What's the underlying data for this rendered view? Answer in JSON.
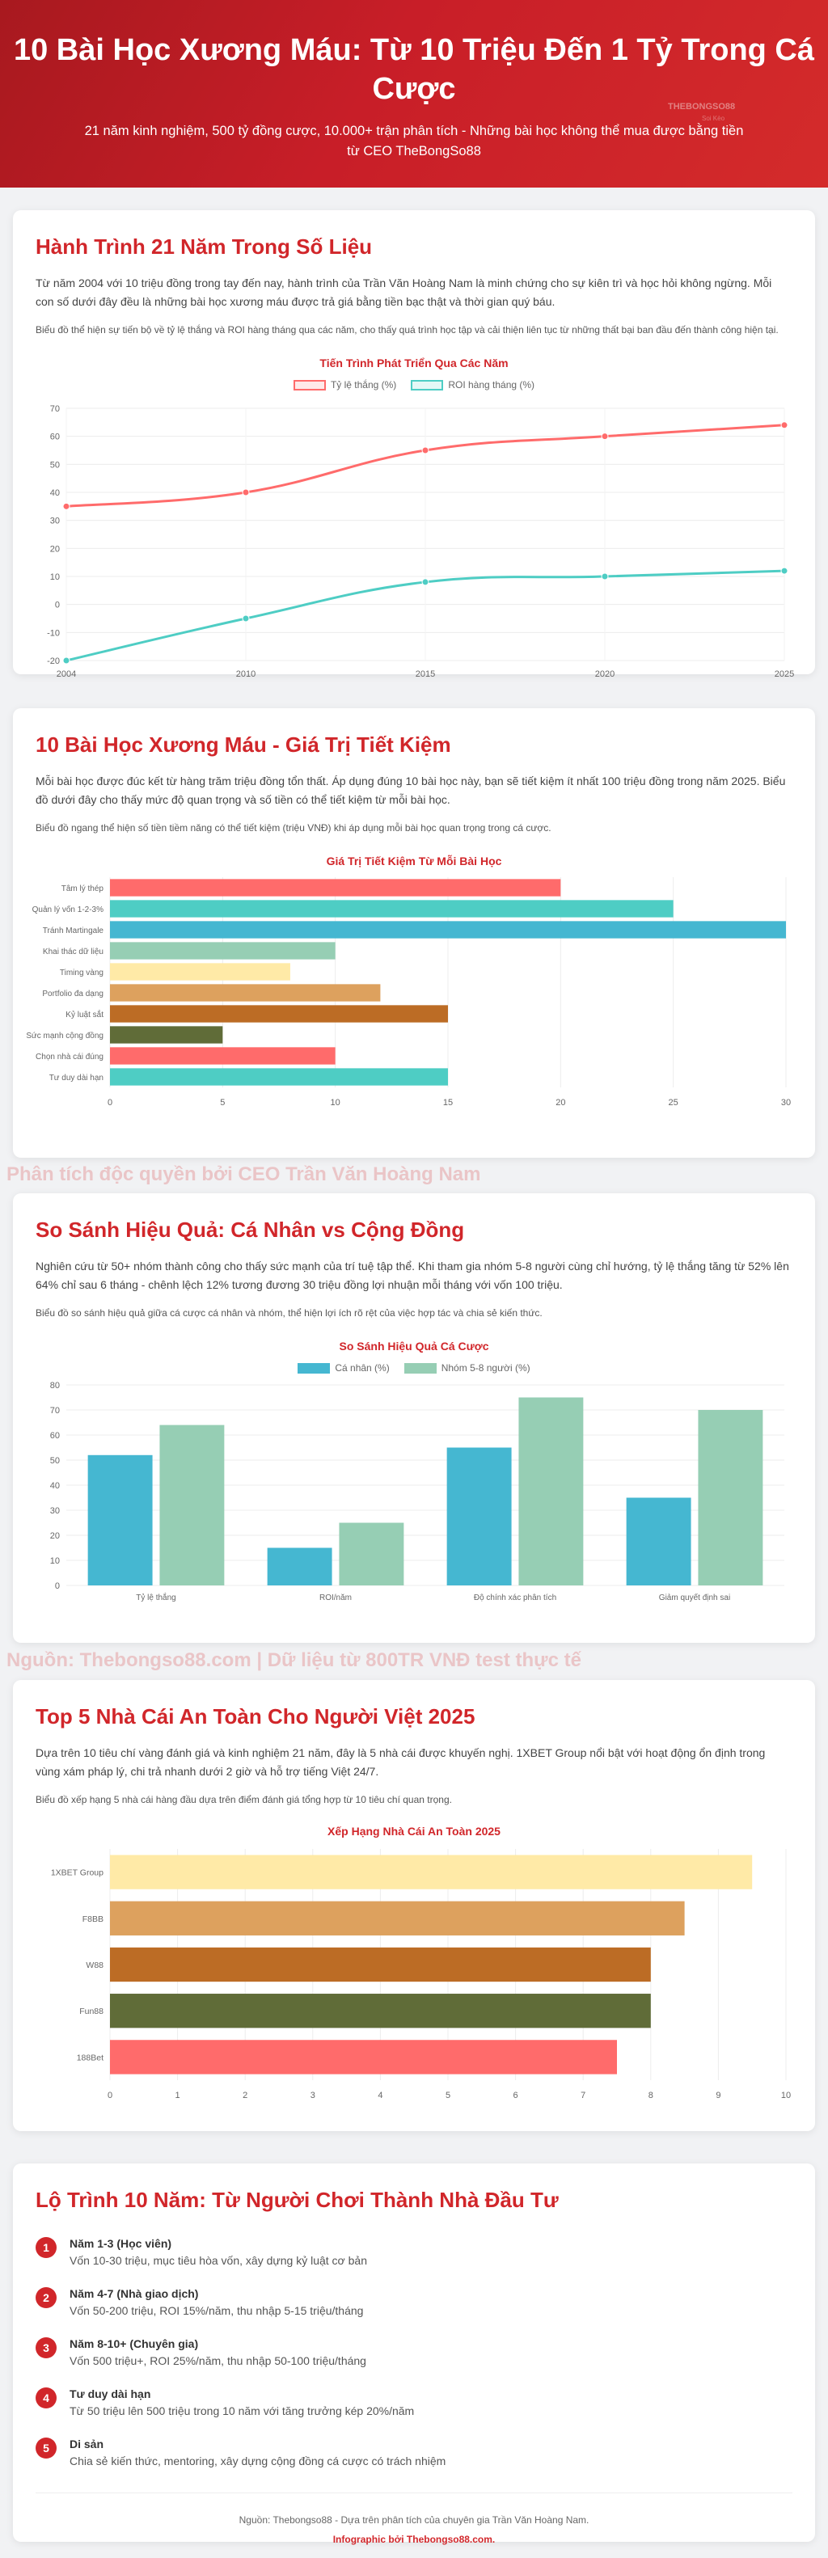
{
  "hero": {
    "title": "10 Bài Học Xương Máu: Từ 10 Triệu Đến 1 Tỷ Trong Cá Cược",
    "subtitle": "21 năm kinh nghiệm, 500 tỷ đồng cược, 10.000+ trận phân tích - Những bài học không thể mua được bằng tiền từ CEO TheBongSo88",
    "brand": "THEBONGSO88",
    "brand_sub": "Soi Kèo"
  },
  "section1": {
    "title": "Hành Trình 21 Năm Trong Số Liệu",
    "desc": "Từ năm 2004 với 10 triệu đồng trong tay đến nay, hành trình của Trần Văn Hoàng Nam là minh chứng cho sự kiên trì và học hỏi không ngừng. Mỗi con số dưới đây đều là những bài học xương máu được trả giá bằng tiền bạc thật và thời gian quý báu.",
    "note": "Biểu đồ thể hiện sự tiến bộ về tỷ lệ thắng và ROI hàng tháng qua các năm, cho thấy quá trình học tập và cải thiện liên tục từ những thất bại ban đầu đến thành công hiện tại."
  },
  "section2": {
    "title": "10 Bài Học Xương Máu - Giá Trị Tiết Kiệm",
    "desc": "Mỗi bài học được đúc kết từ hàng trăm triệu đồng tổn thất. Áp dụng đúng 10 bài học này, bạn sẽ tiết kiệm ít nhất 100 triệu đồng trong năm 2025. Biểu đồ dưới đây cho thấy mức độ quan trọng và số tiền có thể tiết kiệm từ mỗi bài học.",
    "note": "Biểu đồ ngang thể hiện số tiền tiềm năng có thể tiết kiệm (triệu VNĐ) khi áp dụng mỗi bài học quan trọng trong cá cược."
  },
  "watermark1": "Phân tích độc quyền bởi CEO Trần Văn Hoàng Nam",
  "section3": {
    "title": "So Sánh Hiệu Quả: Cá Nhân vs Cộng Đồng",
    "desc": "Nghiên cứu từ 50+ nhóm thành công cho thấy sức mạnh của trí tuệ tập thể. Khi tham gia nhóm 5-8 người cùng chỉ hướng, tỷ lệ thắng tăng từ 52% lên 64% chỉ sau 6 tháng - chênh lệch 12% tương đương 30 triệu đồng lợi nhuận mỗi tháng với vốn 100 triệu.",
    "note": "Biểu đồ so sánh hiệu quả giữa cá cược cá nhân và nhóm, thể hiện lợi ích rõ rệt của việc hợp tác và chia sẻ kiến thức."
  },
  "watermark2": "Nguồn: Thebongso88.com | Dữ liệu từ 800TR VNĐ test thực tế",
  "section4": {
    "title": "Top 5 Nhà Cái An Toàn Cho Người Việt 2025",
    "desc": "Dựa trên 10 tiêu chí vàng đánh giá và kinh nghiệm 21 năm, đây là 5 nhà cái được khuyến nghị. 1XBET Group nổi bật với hoạt động ổn định trong vùng xám pháp lý, chi trả nhanh dưới 2 giờ và hỗ trợ tiếng Việt 24/7.",
    "note": "Biểu đồ xếp hạng 5 nhà cái hàng đầu dựa trên điểm đánh giá tổng hợp từ 10 tiêu chí quan trọng."
  },
  "section5": {
    "title": "Lộ Trình 10 Năm: Từ Người Chơi Thành Nhà Đầu Tư",
    "steps": [
      {
        "num": "1",
        "title": "Năm 1-3 (Học viên)",
        "desc": "Vốn 10-30 triệu, mục tiêu hòa vốn, xây dựng kỷ luật cơ bản"
      },
      {
        "num": "2",
        "title": "Năm 4-7 (Nhà giao dịch)",
        "desc": "Vốn 50-200 triệu, ROI 15%/năm, thu nhập 5-15 triệu/tháng"
      },
      {
        "num": "3",
        "title": "Năm 8-10+ (Chuyên gia)",
        "desc": "Vốn 500 triệu+, ROI 25%/năm, thu nhập 50-100 triệu/tháng"
      },
      {
        "num": "4",
        "title": "Tư duy dài hạn",
        "desc": "Từ 50 triệu lên 500 triệu trong 10 năm với tăng trưởng kép 20%/năm"
      },
      {
        "num": "5",
        "title": "Di sản",
        "desc": "Chia sẻ kiến thức, mentoring, xây dựng cộng đồng cá cược có trách nhiệm"
      }
    ],
    "footer_source": "Nguồn: Thebongso88 - Dựa trên phân tích của chuyên gia Trần Văn Hoàng Nam.",
    "footer_credit": "Infographic bởi Thebongso88.com."
  },
  "colors": {
    "primary": "#d1262a",
    "coral": "#ff6b6b",
    "teal": "#4ecdc4",
    "blue": "#45b7d1",
    "mint": "#96ceb4",
    "gold": "#ffeaa7",
    "tan": "#dda15e",
    "brown": "#bc6c25",
    "olive": "#606c38"
  },
  "chart_data": [
    {
      "type": "line",
      "title": "Tiến Trình Phát Triển Qua Các Năm",
      "x": [
        "2004",
        "2010",
        "2015",
        "2020",
        "2025"
      ],
      "series": [
        {
          "name": "Tỷ lệ thắng (%)",
          "values": [
            35,
            40,
            55,
            60,
            64
          ],
          "color": "#ff6b6b"
        },
        {
          "name": "ROI hàng tháng (%)",
          "values": [
            -20,
            -5,
            8,
            10,
            12
          ],
          "color": "#4ecdc4"
        }
      ],
      "ylim": [
        -20,
        70
      ],
      "yticks": [
        "-20",
        "-10",
        "0",
        "10",
        "20",
        "30",
        "40",
        "50",
        "60",
        "70"
      ],
      "legend": "top-center",
      "grid": true
    },
    {
      "type": "bar",
      "orientation": "horizontal",
      "title": "Giá Trị Tiết Kiệm Từ Mỗi Bài Học",
      "categories": [
        "Tâm lý thép",
        "Quản lý vốn 1-2-3%",
        "Tránh Martingale",
        "Khai thác dữ liệu",
        "Timing vàng",
        "Portfolio đa dạng",
        "Kỷ luật sắt",
        "Sức mạnh cộng đồng",
        "Chọn nhà cái đúng",
        "Tư duy dài hạn"
      ],
      "values": [
        20,
        25,
        30,
        10,
        8,
        12,
        15,
        5,
        10,
        15
      ],
      "colors": [
        "#ff6b6b",
        "#4ecdc4",
        "#45b7d1",
        "#96ceb4",
        "#ffeaa7",
        "#dda15e",
        "#bc6c25",
        "#606c38",
        "#ff6b6b",
        "#4ecdc4"
      ],
      "xlim": [
        0,
        30
      ],
      "xticks": [
        "0",
        "5",
        "10",
        "15",
        "20",
        "25",
        "30"
      ],
      "grid": true
    },
    {
      "type": "bar",
      "title": "So Sánh Hiệu Quả Cá Cược",
      "categories": [
        "Tỷ lệ thắng",
        "ROI/năm",
        "Độ chính xác phân tích",
        "Giảm quyết định sai"
      ],
      "series": [
        {
          "name": "Cá nhân (%)",
          "values": [
            52,
            15,
            55,
            35
          ],
          "color": "#45b7d1"
        },
        {
          "name": "Nhóm 5-8 người (%)",
          "values": [
            64,
            25,
            75,
            70
          ],
          "color": "#96ceb4"
        }
      ],
      "ylim": [
        0,
        80
      ],
      "yticks": [
        "0",
        "10",
        "20",
        "30",
        "40",
        "50",
        "60",
        "70",
        "80"
      ],
      "legend": "top-center",
      "grid": true
    },
    {
      "type": "bar",
      "orientation": "horizontal",
      "title": "Xếp Hạng Nhà Cái An Toàn 2025",
      "categories": [
        "1XBET Group",
        "F8BB",
        "W88",
        "Fun88",
        "188Bet"
      ],
      "values": [
        9.5,
        8.5,
        8,
        8,
        7.5
      ],
      "colors": [
        "#ffeaa7",
        "#dda15e",
        "#bc6c25",
        "#606c38",
        "#ff6b6b"
      ],
      "xlim": [
        0,
        10
      ],
      "xticks": [
        "0",
        "1",
        "2",
        "3",
        "4",
        "5",
        "6",
        "7",
        "8",
        "9",
        "10"
      ],
      "grid": true
    }
  ]
}
